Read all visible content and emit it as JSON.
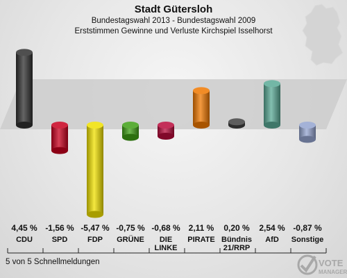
{
  "header": {
    "title": "Stadt Gütersloh",
    "subtitle1": "Bundestagswahl 2013 - Bundestagswahl 2009",
    "subtitle2": "Erststimmen Gewinne und Verluste Kirchspiel Isselhorst"
  },
  "status": "5 von 5 Schnellmeldungen",
  "logo": {
    "line1": "VOTE",
    "line2": "MANAGER"
  },
  "colors": {
    "CDU": "#303030",
    "SPD": "#c8001e",
    "FDP": "#f0e000",
    "GRÜNE": "#3fa016",
    "DIE LINKE": "#b80c3c",
    "PIRATE": "#f07800",
    "Bündnis 21/RRP": "#404040",
    "AfD": "#5aaa96",
    "Sonstige": "#94a4d0"
  },
  "chart_data": {
    "type": "bar",
    "title": "Stadt Gütersloh",
    "categories": [
      "CDU",
      "SPD",
      "FDP",
      "GRÜNE",
      "DIE LINKE",
      "PIRATE",
      "Bündnis 21/RRP",
      "AfD",
      "Sonstige"
    ],
    "category_lines": [
      [
        "CDU"
      ],
      [
        "SPD"
      ],
      [
        "FDP"
      ],
      [
        "GRÜNE"
      ],
      [
        "DIE",
        "LINKE"
      ],
      [
        "PIRATE"
      ],
      [
        "Bündnis",
        "21/RRP"
      ],
      [
        "AfD"
      ],
      [
        "Sonstige"
      ]
    ],
    "values": [
      4.45,
      -1.56,
      -5.47,
      -0.75,
      -0.68,
      2.11,
      0.2,
      2.54,
      -0.87
    ],
    "labels": [
      "4,45 %",
      "-1,56 %",
      "-5,47 %",
      "-0,75 %",
      "-0,68 %",
      "2,11 %",
      "0,20 %",
      "2,54 %",
      "-0,87 %"
    ],
    "unit": "%",
    "grid": false,
    "legend": "none"
  }
}
